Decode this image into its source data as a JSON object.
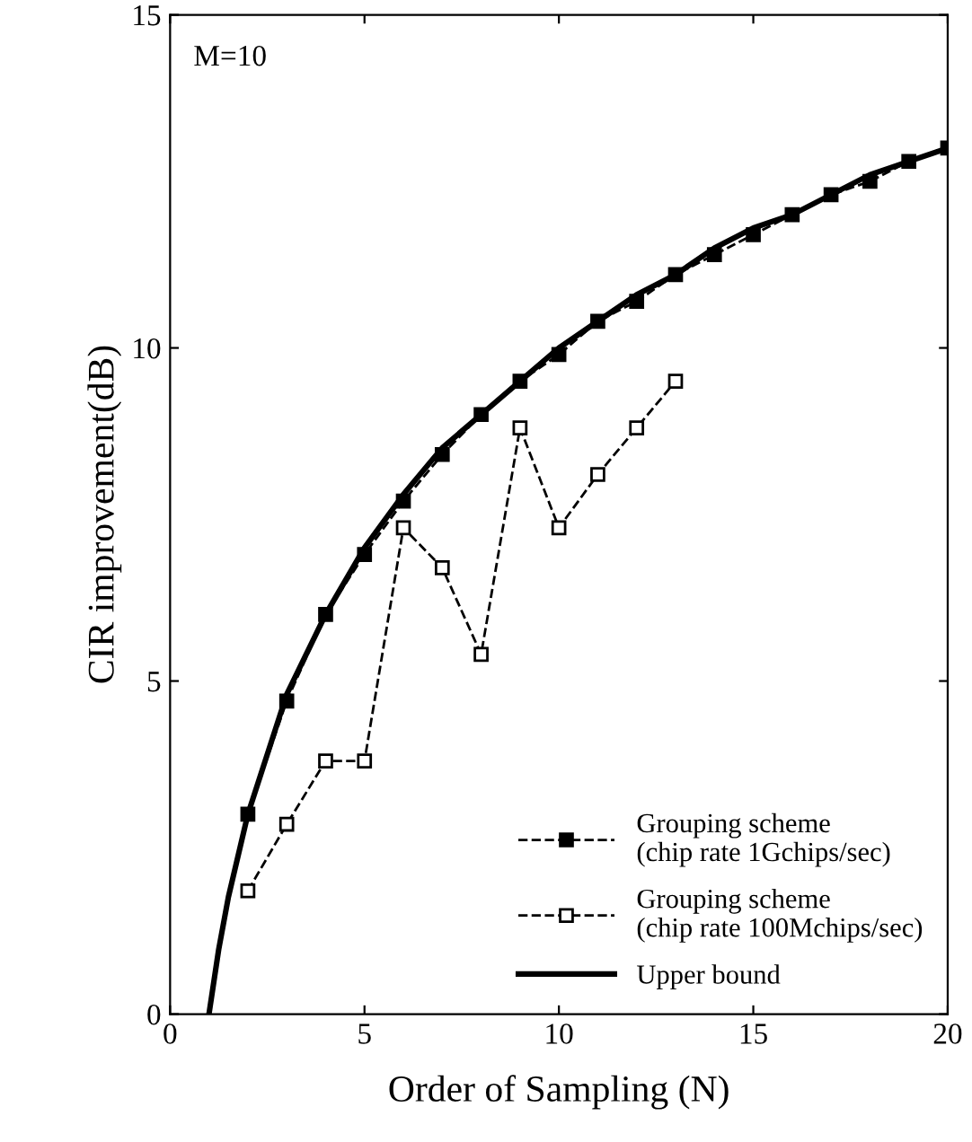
{
  "chart_data": {
    "type": "line",
    "xlabel": "Order of Sampling (N)",
    "ylabel": "CIR improvement(dB)",
    "annotations": [
      "M=10"
    ],
    "xlim": [
      0,
      20
    ],
    "ylim": [
      0,
      15
    ],
    "xticks": [
      0,
      5,
      10,
      15,
      20
    ],
    "yticks": [
      0,
      5,
      10,
      15
    ],
    "grid": false,
    "legend": "bottom right",
    "series": [
      {
        "name": "Grouping scheme\n(chip rate 1Gchips/sec)",
        "color": "#000000",
        "marker": "square",
        "line_style": "dashed",
        "x": [
          2,
          3,
          4,
          5,
          6,
          7,
          8,
          9,
          10,
          11,
          12,
          13,
          14,
          15,
          16,
          17,
          18,
          19,
          20
        ],
        "values": [
          3.0,
          4.7,
          6.0,
          6.9,
          7.7,
          8.4,
          9.0,
          9.5,
          9.9,
          10.4,
          10.7,
          11.1,
          11.4,
          11.7,
          12.0,
          12.3,
          12.5,
          12.8,
          13.0
        ]
      },
      {
        "name": "Grouping scheme\n(chip rate 100Mchips/sec)",
        "color": "#000000",
        "marker": "square",
        "line_style": "dashed",
        "x": [
          2,
          3,
          4,
          5,
          6,
          7,
          8,
          9,
          10,
          11,
          12,
          13
        ],
        "values": [
          1.85,
          2.85,
          3.8,
          3.8,
          7.3,
          6.7,
          5.4,
          8.8,
          7.3,
          8.1,
          8.8,
          9.5
        ]
      },
      {
        "name": "Upper bound",
        "color": "#000000",
        "marker": "none",
        "line_style": "solid",
        "x": [
          1,
          1.25,
          1.5,
          2,
          3,
          4,
          5,
          6,
          7,
          8,
          9,
          10,
          11,
          12,
          13,
          14,
          15,
          16,
          17,
          18,
          19,
          20
        ],
        "values": [
          0,
          0.97,
          1.76,
          3.0,
          4.8,
          6.0,
          7.0,
          7.8,
          8.5,
          9.0,
          9.5,
          10.0,
          10.4,
          10.8,
          11.1,
          11.5,
          11.8,
          12.0,
          12.3,
          12.6,
          12.8,
          13.0
        ]
      }
    ]
  }
}
